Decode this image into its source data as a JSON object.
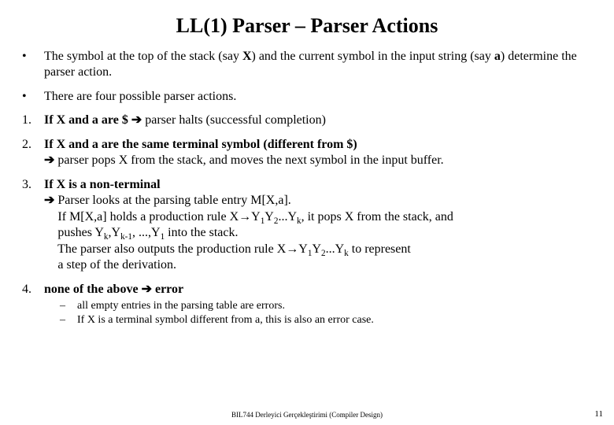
{
  "title": "LL(1) Parser – Parser Actions",
  "bullets": {
    "b1": {
      "marker": "•",
      "text_a": "The symbol at the top of the stack (say ",
      "X": "X",
      "text_b": ") and the current symbol in the input string (say ",
      "a": "a",
      "text_c": ") determine the parser action."
    },
    "b2": {
      "marker": "•",
      "text": "There are four possible parser actions."
    }
  },
  "items": {
    "n1": {
      "marker": "1.",
      "pre": "If ",
      "X": "X",
      "and": " and ",
      "a": "a",
      "are": " are ",
      "dollar": "$",
      "arrow": " ➔ ",
      "post": "parser halts (successful completion)"
    },
    "n2": {
      "marker": "2.",
      "line1_pre": "If ",
      "line1_X": "X",
      "line1_and": " and ",
      "line1_a": "a",
      "line1_post": " are the same terminal symbol (different from  $)",
      "arrow": "➔ ",
      "line2": "parser pops X from the stack, and moves the next symbol in the input buffer."
    },
    "n3": {
      "marker": "3.",
      "l1_pre": "If ",
      "l1_X": "X",
      "l1_post": " is a non-terminal",
      "arrow": "➔   ",
      "l2": "Parser looks at the parsing table entry M[X,a].",
      "l3a": "If M[X,a] holds a production rule   X",
      "prod_arrow": "→",
      "l3b1": "Y",
      "sub1": "1",
      "l3b2": "Y",
      "sub2": "2",
      "l3c": "...Y",
      "subk": "k",
      "l3d": ", it pops X from the stack, and",
      "l4a": "pushes Y",
      "l4b": ",Y",
      "subk1": "k-1",
      "l4c": ", ...,Y",
      "l4d": " into the stack.",
      "l5a": "The parser also outputs the production rule X",
      "l5b": " to represent",
      "l6": "a step of the derivation."
    },
    "n4": {
      "marker": "4.",
      "bold": "none of the above  ",
      "arrow": "➔",
      "post": "   error",
      "sub1": {
        "marker": "–",
        "text": "all empty entries in the parsing table are errors."
      },
      "sub2": {
        "marker": "–",
        "text": "If X is a terminal symbol different from a, this is also an error case."
      }
    }
  },
  "footer": "BIL744 Derleyici Gerçekleştirimi (Compiler Design)",
  "pagenum": "11"
}
